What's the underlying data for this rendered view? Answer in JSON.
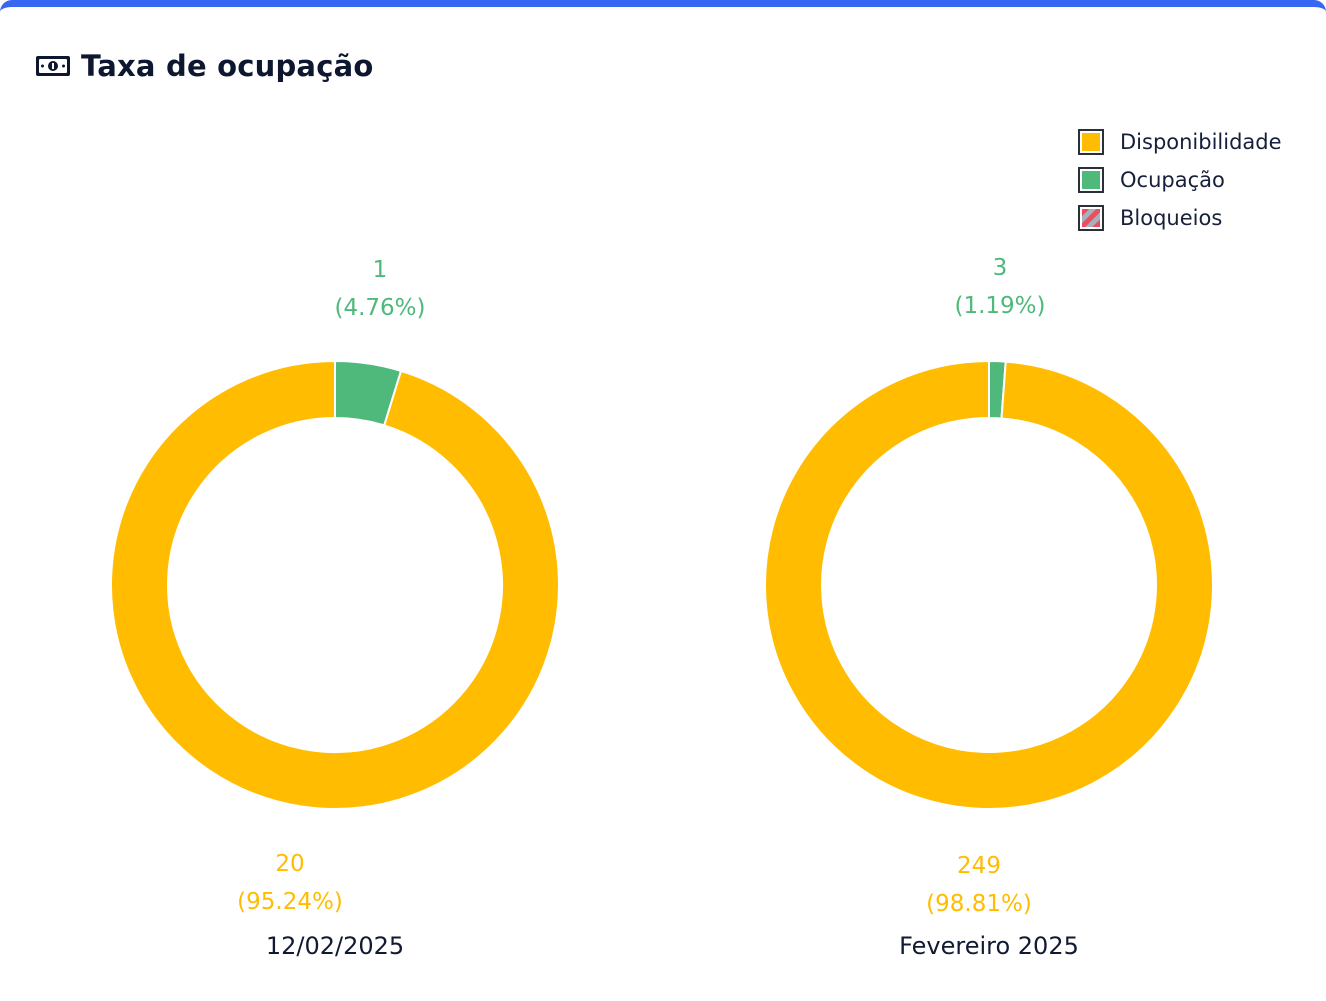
{
  "header": {
    "title": "Taxa de ocupação",
    "icon": "money-bill-icon"
  },
  "colors": {
    "accent_bar": "#3868f2",
    "disponibilidade": "#ffbc00",
    "ocupacao": "#4fb87b",
    "bloqueios_a": "#aab0b8",
    "bloqueios_b": "#ee4d5f"
  },
  "legend": {
    "items": [
      {
        "label": "Disponibilidade",
        "color": "#ffbc00"
      },
      {
        "label": "Ocupação",
        "color": "#4fb87b"
      },
      {
        "label": "Bloqueios",
        "color": "striped"
      }
    ],
    "placement": "top-right"
  },
  "chart_data": [
    {
      "type": "pie",
      "donut": true,
      "caption": "12/02/2025",
      "series": [
        {
          "name": "Ocupação",
          "value": 1,
          "percent_label": "(4.76%)",
          "value_label": "1"
        },
        {
          "name": "Disponibilidade",
          "value": 20,
          "percent_label": "(95.24%)",
          "value_label": "20"
        }
      ]
    },
    {
      "type": "pie",
      "donut": true,
      "caption": "Fevereiro 2025",
      "series": [
        {
          "name": "Ocupação",
          "value": 3,
          "percent_label": "(1.19%)",
          "value_label": "3"
        },
        {
          "name": "Disponibilidade",
          "value": 249,
          "percent_label": "(98.81%)",
          "value_label": "249"
        }
      ]
    }
  ]
}
